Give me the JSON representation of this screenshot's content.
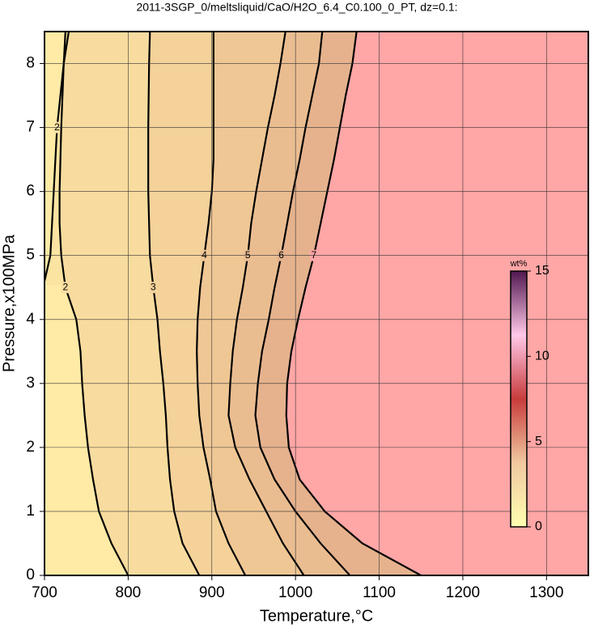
{
  "chart_data": {
    "type": "contour",
    "title": "2011-3SGP_0/meltsliquid/CaO/H2O_6.4_C0.100_0_PT, dz=0.1:",
    "x_label": "Temperature,°C",
    "y_label": "Pressure,x100MPa",
    "xlim": [
      700,
      1350
    ],
    "ylim": [
      0,
      8.5
    ],
    "xticks": [
      700,
      800,
      900,
      1000,
      1100,
      1200,
      1300
    ],
    "yticks": [
      0,
      1,
      2,
      3,
      4,
      5,
      6,
      7,
      8
    ],
    "grid": true,
    "background_color": "#ffeaa6",
    "contours": [
      {
        "level": 2,
        "color": "#000000",
        "fill": "#fbe3a2",
        "y": [
          4.6,
          5,
          6,
          7,
          8,
          8.5
        ],
        "x": [
          700,
          707,
          711,
          715,
          723,
          729
        ]
      },
      {
        "level": 2,
        "color": "#000000",
        "fill": "#f8dc9f",
        "y": [
          0,
          0.5,
          1,
          1.5,
          2,
          2.5,
          3,
          3.5,
          4,
          4.5,
          5,
          5.5,
          6,
          7,
          8,
          8.5
        ],
        "x": [
          800,
          780,
          765,
          758,
          752,
          748,
          745,
          743,
          738,
          725,
          720,
          718,
          718,
          720,
          723,
          725
        ]
      },
      {
        "level": 3,
        "color": "#000000",
        "fill": "#f4d29a",
        "y": [
          0,
          0.5,
          1,
          1.5,
          2,
          2.5,
          3,
          3.5,
          4,
          4.5,
          5,
          6,
          7,
          8,
          8.5
        ],
        "x": [
          885,
          865,
          855,
          850,
          847,
          845,
          842,
          838,
          835,
          830,
          826,
          824,
          824,
          825,
          826
        ]
      },
      {
        "level": 4,
        "color": "#000000",
        "fill": "#efc795",
        "y": [
          0,
          0.5,
          1,
          1.5,
          2,
          2.5,
          3,
          3.5,
          4,
          4.5,
          5,
          5.5,
          6,
          6.5,
          7,
          8,
          8.5
        ],
        "x": [
          940,
          920,
          905,
          898,
          890,
          885,
          883,
          882,
          883,
          886,
          891,
          896,
          900,
          902,
          902,
          902,
          902
        ]
      },
      {
        "level": 5,
        "color": "#000000",
        "fill": "#eabd91",
        "y": [
          0,
          0.5,
          1,
          1.5,
          2,
          2.5,
          3,
          3.5,
          4,
          4.5,
          5,
          5.5,
          6,
          6.5,
          7,
          7.5,
          8,
          8.5
        ],
        "x": [
          1010,
          985,
          965,
          945,
          928,
          920,
          922,
          925,
          930,
          937,
          943,
          947,
          953,
          960,
          967,
          975,
          982,
          988
        ]
      },
      {
        "level": 6,
        "color": "#000000",
        "fill": "#e5b28d",
        "y": [
          0,
          0.5,
          1,
          1.5,
          2,
          2.5,
          3,
          3.5,
          4,
          4.5,
          5,
          5.5,
          6,
          6.5,
          7,
          7.5,
          8,
          8.5
        ],
        "x": [
          1065,
          1030,
          1000,
          975,
          958,
          952,
          955,
          960,
          968,
          975,
          983,
          990,
          997,
          1005,
          1012,
          1020,
          1028,
          1032
        ]
      },
      {
        "level": 7,
        "color": "#000000",
        "fill": "#ffa6a6",
        "y": [
          0,
          0.5,
          1,
          1.5,
          2,
          2.5,
          3,
          3.5,
          4,
          4.5,
          5,
          5.5,
          6,
          6.5,
          7,
          7.5,
          8,
          8.5
        ],
        "x": [
          1150,
          1080,
          1035,
          1005,
          992,
          989,
          990,
          995,
          1003,
          1012,
          1022,
          1030,
          1038,
          1046,
          1053,
          1060,
          1068,
          1073
        ]
      }
    ],
    "colorbar": {
      "label": "wt%",
      "clim": [
        0,
        15
      ],
      "ticks": [
        0,
        5,
        10,
        15
      ],
      "colors": [
        "#ffffb0",
        "#f0c8a0",
        "#c83c3c",
        "#ffc8e8",
        "#501850"
      ]
    }
  }
}
